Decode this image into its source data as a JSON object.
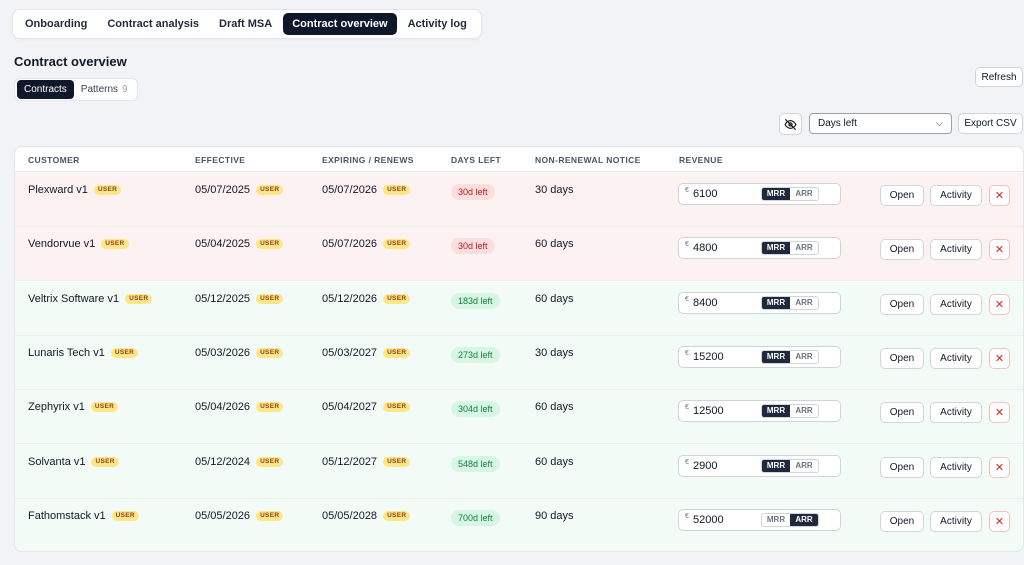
{
  "nav": {
    "tabs": [
      {
        "label": "Onboarding",
        "active": false
      },
      {
        "label": "Contract analysis",
        "active": false
      },
      {
        "label": "Draft MSA",
        "active": false
      },
      {
        "label": "Contract overview",
        "active": true
      },
      {
        "label": "Activity log",
        "active": false
      }
    ]
  },
  "page": {
    "title": "Contract overview"
  },
  "view_toggle": {
    "contracts": "Contracts",
    "patterns": "Patterns",
    "patterns_count": "9"
  },
  "toolbar": {
    "refresh": "Refresh",
    "sort_select": "Days left",
    "export": "Export CSV",
    "visibility_icon": "eye-off-icon"
  },
  "table": {
    "headers": [
      "CUSTOMER",
      "EFFECTIVE",
      "EXPIRING / RENEWS",
      "DAYS LEFT",
      "NON-RENEWAL NOTICE",
      "REVENUE"
    ],
    "user_tag": "USER",
    "currency": "€",
    "toggle_labels": [
      "MRR",
      "ARR"
    ],
    "actions": {
      "open": "Open",
      "activity": "Activity",
      "delete": "✕"
    },
    "rows": [
      {
        "customer": "Plexward v1",
        "effective": "05/07/2025",
        "expiring": "05/07/2026",
        "days_left": "30d left",
        "status": "red",
        "notice": "30 days",
        "revenue": "6100",
        "mode": "MRR"
      },
      {
        "customer": "Vendorvue v1",
        "effective": "05/04/2025",
        "expiring": "05/07/2026",
        "days_left": "30d left",
        "status": "red",
        "notice": "60 days",
        "revenue": "4800",
        "mode": "MRR"
      },
      {
        "customer": "Veltrix Software v1",
        "effective": "05/12/2025",
        "expiring": "05/12/2026",
        "days_left": "183d left",
        "status": "green",
        "notice": "60 days",
        "revenue": "8400",
        "mode": "MRR"
      },
      {
        "customer": "Lunaris Tech v1",
        "effective": "05/03/2026",
        "expiring": "05/03/2027",
        "days_left": "273d left",
        "status": "green",
        "notice": "30 days",
        "revenue": "15200",
        "mode": "MRR"
      },
      {
        "customer": "Zephyrix v1",
        "effective": "05/04/2026",
        "expiring": "05/04/2027",
        "days_left": "304d left",
        "status": "green",
        "notice": "60 days",
        "revenue": "12500",
        "mode": "MRR"
      },
      {
        "customer": "Solvanta v1",
        "effective": "05/12/2024",
        "expiring": "05/12/2027",
        "days_left": "548d left",
        "status": "green",
        "notice": "60 days",
        "revenue": "2900",
        "mode": "MRR"
      },
      {
        "customer": "Fathomstack v1",
        "effective": "05/05/2026",
        "expiring": "05/05/2028",
        "days_left": "700d left",
        "status": "green",
        "notice": "90 days",
        "revenue": "52000",
        "mode": "ARR"
      }
    ]
  }
}
